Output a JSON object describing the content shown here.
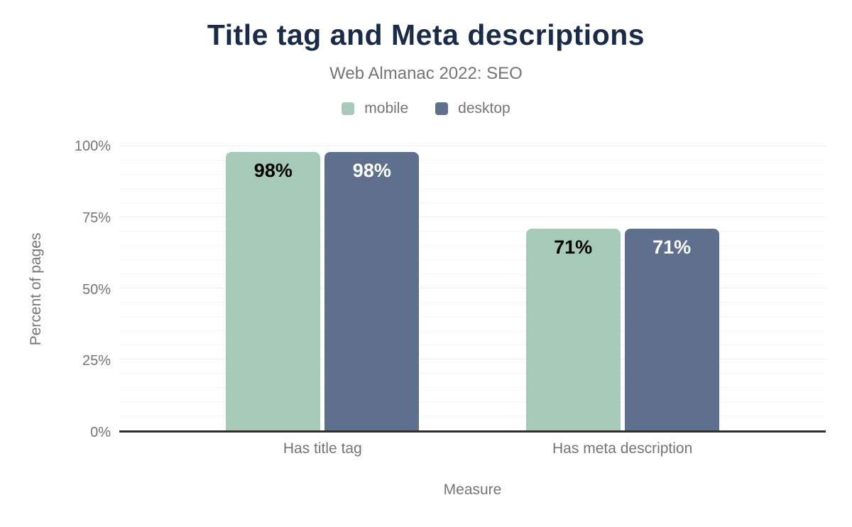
{
  "styles": {
    "title_color": "#1a2b4a",
    "text_color": "#757575",
    "axis_color": "#2e2e2e",
    "grid_minor": "#f5f5f5",
    "grid_major": "#ececec",
    "background": "#ffffff"
  },
  "chart_data": {
    "type": "bar",
    "title": "Title tag and Meta descriptions",
    "subtitle": "Web Almanac 2022: SEO",
    "xlabel": "Measure",
    "ylabel": "Percent of pages",
    "categories": [
      "Has title tag",
      "Has meta description"
    ],
    "series": [
      {
        "name": "mobile",
        "color": "#a6c9b8",
        "label_color": "#000000",
        "values": [
          98,
          71
        ],
        "data_labels": [
          "98%",
          "71%"
        ]
      },
      {
        "name": "desktop",
        "color": "#5e708d",
        "label_color": "#ffffff",
        "values": [
          98,
          71
        ],
        "data_labels": [
          "98%",
          "71%"
        ]
      }
    ],
    "ylim": [
      0,
      100
    ],
    "yticks": [
      {
        "value": 0,
        "label": "0%"
      },
      {
        "value": 25,
        "label": "25%"
      },
      {
        "value": 50,
        "label": "50%"
      },
      {
        "value": 75,
        "label": "75%"
      },
      {
        "value": 100,
        "label": "100%"
      }
    ],
    "minor_grid_step": 5,
    "major_grid_step": 25,
    "grid": "on",
    "legend_position": "top"
  }
}
